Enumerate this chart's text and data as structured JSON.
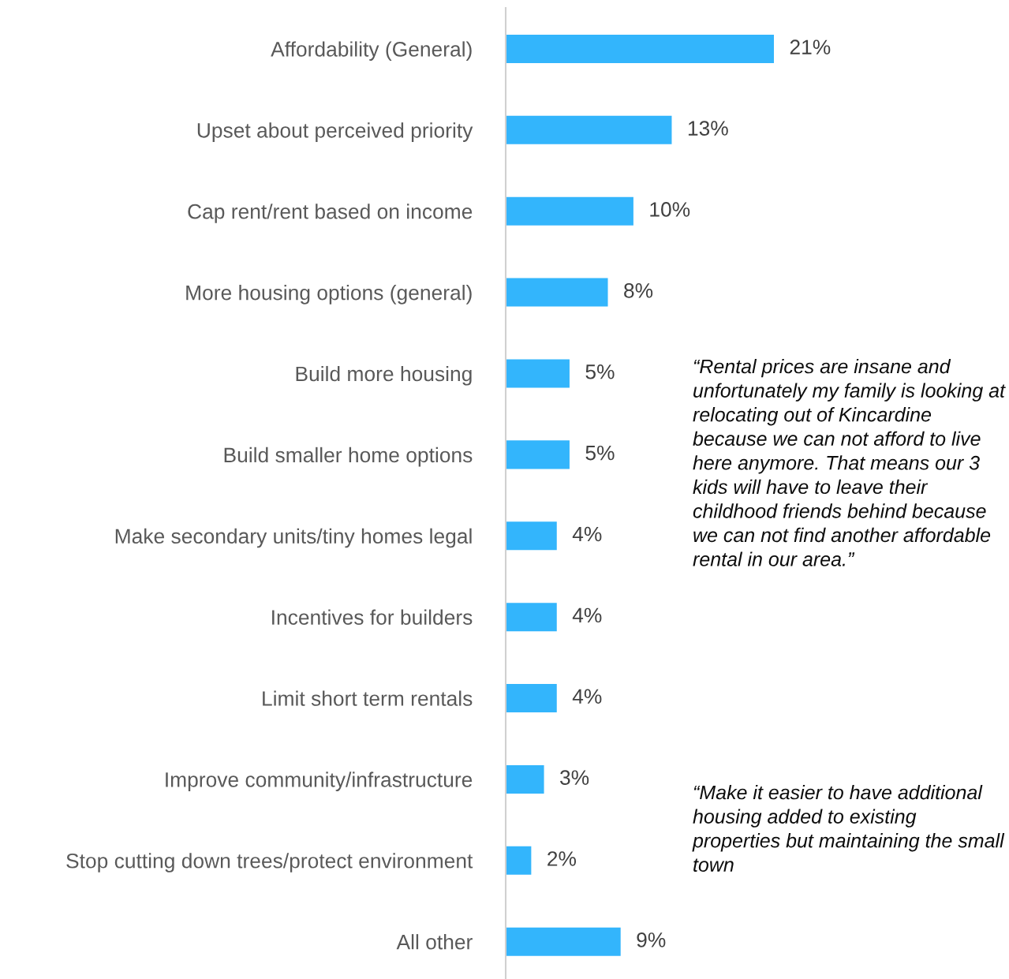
{
  "chart_data": {
    "type": "bar",
    "orientation": "horizontal",
    "data_labels": true,
    "color": "#33b5fc",
    "categories": [
      "Affordability (General)",
      "Upset about perceived priority",
      "Cap rent/rent based on income",
      "More housing options (general)",
      "Build more housing",
      "Build smaller home options",
      "Make secondary units/tiny homes legal",
      "Incentives for builders",
      "Limit short term rentals",
      "Improve community/infrastructure",
      "Stop cutting down trees/protect environment",
      "All other"
    ],
    "values": [
      21,
      13,
      10,
      8,
      5,
      5,
      4,
      4,
      4,
      3,
      2,
      9
    ],
    "value_labels": [
      "21%",
      "13%",
      "10%",
      "8%",
      "5%",
      "5%",
      "4%",
      "4%",
      "4%",
      "3%",
      "2%",
      "9%"
    ],
    "annotations": [
      "“Rental prices are insane and unfortunately my family is looking at relocating out of Kincardine because we can not afford to live here anymore. That means our 3 kids will have to leave their childhood friends behind because we can not find another affordable rental in our area.”",
      "“Make it easier to have additional housing added to existing properties but maintaining the small town"
    ]
  }
}
